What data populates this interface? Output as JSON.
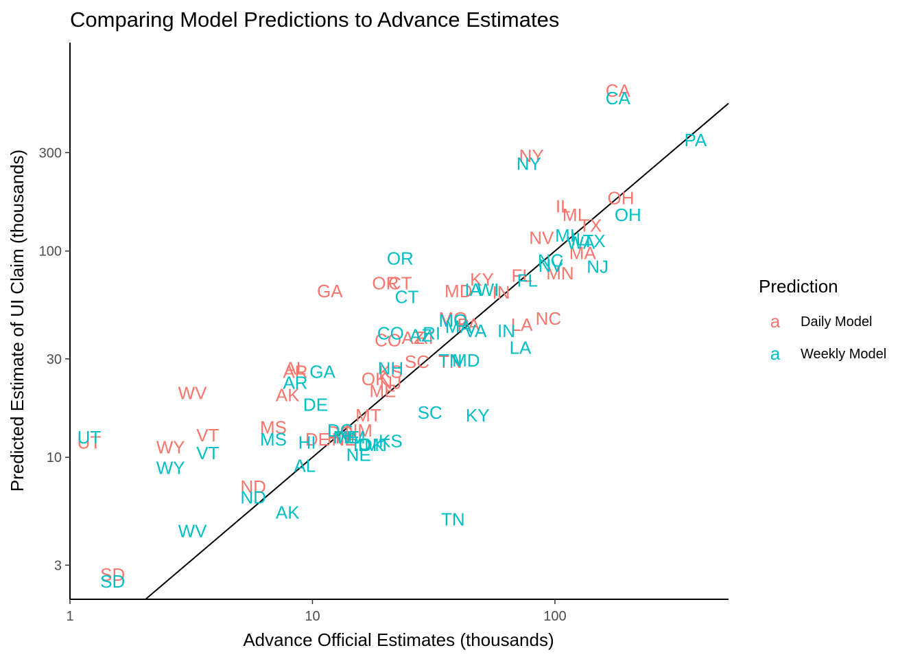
{
  "chart_data": {
    "type": "scatter",
    "title": "Comparing Model Predictions to Advance Estimates",
    "xlabel": "Advance Official Estimates (thousands)",
    "ylabel": "Predicted Estimate of UI Claim (thousands)",
    "x_scale": "log10",
    "y_scale": "log10",
    "xlim": [
      1,
      520
    ],
    "ylim": [
      2.05,
      1025
    ],
    "x_ticks": [
      1,
      10,
      100
    ],
    "x_tick_labels": [
      "1",
      "10",
      "100"
    ],
    "y_ticks": [
      3,
      10,
      30,
      100,
      300
    ],
    "y_tick_labels": [
      "3",
      "10",
      "30",
      "100",
      "300"
    ],
    "grid": false,
    "reference_line": "y = x",
    "legend": {
      "title": "Prediction",
      "placement": "right",
      "key_glyph": "a",
      "entries": [
        {
          "name": "Daily Model",
          "color": "#F8766D"
        },
        {
          "name": "Weekly Model",
          "color": "#00BFC4"
        }
      ]
    },
    "series": [
      {
        "name": "Daily Model",
        "color": "#F8766D",
        "points": [
          {
            "label": "CA",
            "x": 182,
            "y": 600
          },
          {
            "label": "NY",
            "x": 80,
            "y": 290
          },
          {
            "label": "OH",
            "x": 187,
            "y": 181
          },
          {
            "label": "IL",
            "x": 108,
            "y": 165
          },
          {
            "label": "MI",
            "x": 118,
            "y": 150
          },
          {
            "label": "TX",
            "x": 140,
            "y": 133
          },
          {
            "label": "NV",
            "x": 88,
            "y": 116
          },
          {
            "label": "MA",
            "x": 130,
            "y": 98
          },
          {
            "label": "MN",
            "x": 105,
            "y": 78
          },
          {
            "label": "FL",
            "x": 73,
            "y": 76
          },
          {
            "label": "KY",
            "x": 50,
            "y": 73
          },
          {
            "label": "MD",
            "x": 40,
            "y": 64
          },
          {
            "label": "IN",
            "x": 60,
            "y": 63
          },
          {
            "label": "OR",
            "x": 20,
            "y": 70
          },
          {
            "label": "CT",
            "x": 23,
            "y": 70
          },
          {
            "label": "GA",
            "x": 11.8,
            "y": 64
          },
          {
            "label": "NC",
            "x": 94,
            "y": 47
          },
          {
            "label": "LA",
            "x": 73,
            "y": 44
          },
          {
            "label": "MO",
            "x": 38,
            "y": 47
          },
          {
            "label": "PA",
            "x": 44,
            "y": 44
          },
          {
            "label": "AZ",
            "x": 26,
            "y": 38
          },
          {
            "label": "RI",
            "x": 29,
            "y": 38
          },
          {
            "label": "CO",
            "x": 20.5,
            "y": 37
          },
          {
            "label": "SC",
            "x": 27,
            "y": 29
          },
          {
            "label": "TN",
            "x": 37,
            "y": 29
          },
          {
            "label": "AL",
            "x": 8.5,
            "y": 27
          },
          {
            "label": "AR",
            "x": 8.5,
            "y": 26
          },
          {
            "label": "OK",
            "x": 18,
            "y": 24
          },
          {
            "label": "KS",
            "x": 21,
            "y": 26
          },
          {
            "label": "NJ",
            "x": 21,
            "y": 23
          },
          {
            "label": "ME",
            "x": 19.5,
            "y": 21
          },
          {
            "label": "AK",
            "x": 7.9,
            "y": 20
          },
          {
            "label": "WV",
            "x": 3.2,
            "y": 20.5
          },
          {
            "label": "MT",
            "x": 17,
            "y": 16
          },
          {
            "label": "MS",
            "x": 6.9,
            "y": 14
          },
          {
            "label": "NM",
            "x": 15.5,
            "y": 13.5
          },
          {
            "label": "VT",
            "x": 3.7,
            "y": 12.8
          },
          {
            "label": "UT",
            "x": 1.2,
            "y": 11.8
          },
          {
            "label": "WY",
            "x": 2.6,
            "y": 11.2
          },
          {
            "label": "DE",
            "x": 10.5,
            "y": 12.2
          },
          {
            "label": "HI",
            "x": 12.5,
            "y": 12.5
          },
          {
            "label": "NE",
            "x": 13.5,
            "y": 12.2
          },
          {
            "label": "DC",
            "x": 13,
            "y": 13.2
          },
          {
            "label": "ND",
            "x": 5.7,
            "y": 7.2
          },
          {
            "label": "SD",
            "x": 1.5,
            "y": 2.7
          }
        ]
      },
      {
        "name": "Weekly Model",
        "color": "#00BFC4",
        "points": [
          {
            "label": "CA",
            "x": 182,
            "y": 550
          },
          {
            "label": "PA",
            "x": 380,
            "y": 345
          },
          {
            "label": "NY",
            "x": 78,
            "y": 265
          },
          {
            "label": "OH",
            "x": 200,
            "y": 150
          },
          {
            "label": "MI",
            "x": 110,
            "y": 119
          },
          {
            "label": "IL",
            "x": 125,
            "y": 114
          },
          {
            "label": "WA",
            "x": 128,
            "y": 110
          },
          {
            "label": "TX",
            "x": 145,
            "y": 112
          },
          {
            "label": "NC",
            "x": 96,
            "y": 90
          },
          {
            "label": "NV",
            "x": 96,
            "y": 85
          },
          {
            "label": "NJ",
            "x": 150,
            "y": 84
          },
          {
            "label": "FL",
            "x": 77,
            "y": 72
          },
          {
            "label": "OR",
            "x": 23,
            "y": 92
          },
          {
            "label": "CT",
            "x": 24.5,
            "y": 60
          },
          {
            "label": "IA",
            "x": 46,
            "y": 65
          },
          {
            "label": "WI",
            "x": 53,
            "y": 65
          },
          {
            "label": "MO",
            "x": 38,
            "y": 46
          },
          {
            "label": "MA",
            "x": 40,
            "y": 43
          },
          {
            "label": "VA",
            "x": 47,
            "y": 41
          },
          {
            "label": "IN",
            "x": 63,
            "y": 41
          },
          {
            "label": "LA",
            "x": 72,
            "y": 34
          },
          {
            "label": "AZ",
            "x": 28,
            "y": 39
          },
          {
            "label": "RI",
            "x": 31,
            "y": 40
          },
          {
            "label": "CO",
            "x": 21,
            "y": 40
          },
          {
            "label": "TN",
            "x": 37,
            "y": 29.5
          },
          {
            "label": "MD",
            "x": 43,
            "y": 29.5
          },
          {
            "label": "NH",
            "x": 21,
            "y": 27
          },
          {
            "label": "GA",
            "x": 11,
            "y": 26
          },
          {
            "label": "AR",
            "x": 8.5,
            "y": 23
          },
          {
            "label": "DE",
            "x": 10.3,
            "y": 18
          },
          {
            "label": "SC",
            "x": 30.5,
            "y": 16.5
          },
          {
            "label": "KY",
            "x": 48,
            "y": 16
          },
          {
            "label": "MS",
            "x": 6.9,
            "y": 12.2
          },
          {
            "label": "HI",
            "x": 9.5,
            "y": 11.8
          },
          {
            "label": "DC",
            "x": 13,
            "y": 13.5
          },
          {
            "label": "ME",
            "x": 13.8,
            "y": 12.5
          },
          {
            "label": "NM",
            "x": 14.5,
            "y": 12.5
          },
          {
            "label": "ID",
            "x": 16,
            "y": 11.5
          },
          {
            "label": "OK",
            "x": 17.5,
            "y": 11.5
          },
          {
            "label": "MT",
            "x": 18.5,
            "y": 11.5
          },
          {
            "label": "KS",
            "x": 21,
            "y": 12
          },
          {
            "label": "NE",
            "x": 15.5,
            "y": 10.3
          },
          {
            "label": "AL",
            "x": 9.3,
            "y": 9.1
          },
          {
            "label": "UT",
            "x": 1.2,
            "y": 12.5
          },
          {
            "label": "VT",
            "x": 3.7,
            "y": 10.5
          },
          {
            "label": "WY",
            "x": 2.6,
            "y": 8.9
          },
          {
            "label": "ND",
            "x": 5.7,
            "y": 6.4
          },
          {
            "label": "AK",
            "x": 7.9,
            "y": 5.4
          },
          {
            "label": "TN",
            "x": 38,
            "y": 5.0
          },
          {
            "label": "WV",
            "x": 3.2,
            "y": 4.4
          },
          {
            "label": "SD",
            "x": 1.5,
            "y": 2.5
          }
        ]
      }
    ]
  }
}
